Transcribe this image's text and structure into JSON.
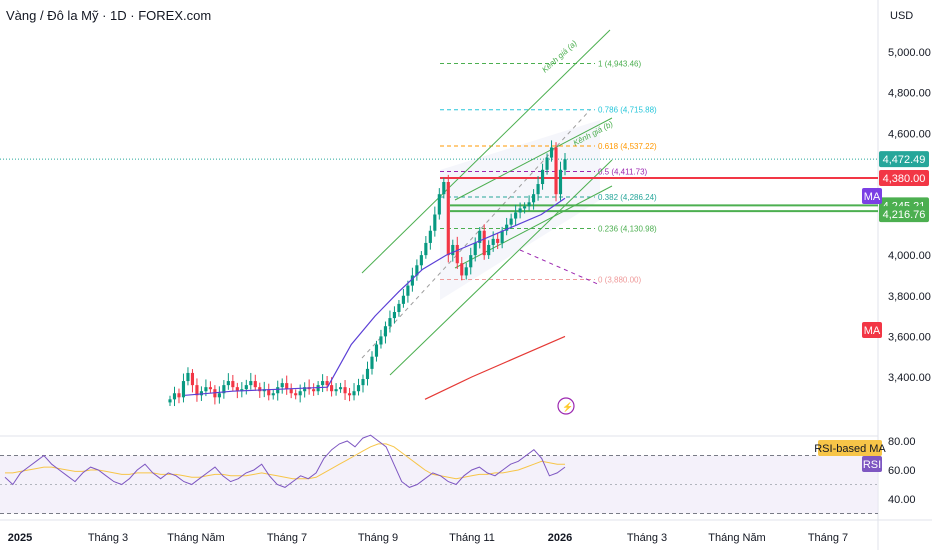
{
  "header": {
    "title": "Vàng / Đô la Mỹ · 1D · FOREX.com",
    "currency": "USD"
  },
  "price_axis": {
    "ticks": [
      {
        "value": 5000,
        "label": "5,000.00"
      },
      {
        "value": 4800,
        "label": "4,800.00"
      },
      {
        "value": 4600,
        "label": "4,600.00"
      },
      {
        "value": 4000,
        "label": "4,000.00"
      },
      {
        "value": 3800,
        "label": "3,800.00"
      },
      {
        "value": 3600,
        "label": "3,600.00"
      },
      {
        "value": 3400,
        "label": "3,400.00"
      }
    ]
  },
  "price_labels": {
    "last": {
      "value": 4472.49,
      "label": "4,472.49",
      "color": "#26a69a"
    },
    "resistance": {
      "value": 4380.0,
      "label": "4,380.00",
      "color": "#f23645"
    },
    "support_1": {
      "value": 4245.21,
      "label": "4,245.21",
      "color": "#4caf50"
    },
    "support_2": {
      "value": 4216.76,
      "label": "4,216.76",
      "color": "#4caf50"
    }
  },
  "ma_badges": [
    {
      "label": "MA",
      "color": "#7b3fe4"
    },
    {
      "label": "MA",
      "color": "#f23645"
    }
  ],
  "rsi_axis": {
    "ticks": [
      {
        "value": 80,
        "label": "80.00"
      },
      {
        "value": 60,
        "label": "60.00"
      },
      {
        "value": 40,
        "label": "40.00"
      }
    ],
    "rsi_ma_label": "RSI-based MA",
    "rsi_label": "RSI"
  },
  "time_axis": {
    "labels": [
      "2025",
      "Tháng 3",
      "Tháng Năm",
      "Tháng 7",
      "Tháng 9",
      "Tháng 11",
      "2026",
      "Tháng 3",
      "Tháng Năm",
      "Tháng 7"
    ],
    "bold": [
      true,
      false,
      false,
      false,
      false,
      false,
      true,
      false,
      false,
      false
    ]
  },
  "fibonacci": {
    "levels": [
      {
        "ratio": 1,
        "price": 4943.46,
        "label": "1 (4,943.46)",
        "color": "#4caf50"
      },
      {
        "ratio": 0.786,
        "price": 4715.88,
        "label": "0.786 (4,715.88)",
        "color": "#26c6da"
      },
      {
        "ratio": 0.618,
        "price": 4537.22,
        "label": "0.618 (4,537.22)",
        "color": "#ff9800"
      },
      {
        "ratio": 0.5,
        "price": 4411.73,
        "label": "0.5 (4,411.73)",
        "color": "#9c27b0"
      },
      {
        "ratio": 0.382,
        "price": 4286.24,
        "label": "0.382 (4,286.24)",
        "color": "#26a69a"
      },
      {
        "ratio": 0.236,
        "price": 4130.98,
        "label": "0.236 (4,130.98)",
        "color": "#4caf50"
      },
      {
        "ratio": 0,
        "price": 3880.0,
        "label": "0 (3,880.00)",
        "color": "#ef9a9a"
      }
    ]
  },
  "channel_labels": [
    "Kênh giá (a)",
    "Kênh giá (b)"
  ],
  "chart_data": {
    "type": "line",
    "title": "Vàng / Đô la Mỹ · 1D · FOREX.com",
    "xlabel": "",
    "ylabel": "USD",
    "ylim": [
      3250,
      5050
    ],
    "x_ticks": [
      "2025",
      "Tháng 3",
      "Tháng Năm",
      "Tháng 7",
      "Tháng 9",
      "Tháng 11",
      "2026",
      "Tháng 3",
      "Tháng Năm",
      "Tháng 7"
    ],
    "series": [
      {
        "values": [
          3290,
          3320,
          3300,
          3380,
          3420,
          3360,
          3310,
          3330,
          3350,
          3340,
          3300,
          3320,
          3360,
          3380,
          3350,
          3330,
          3340,
          3360,
          3380,
          3350,
          3330,
          3340,
          3310,
          3320,
          3350,
          3370,
          3340,
          3320,
          3310,
          3330,
          3350,
          3340,
          3330,
          3360,
          3380,
          3360,
          3330,
          3340,
          3350,
          3320,
          3310,
          3330,
          3360,
          3390,
          3440,
          3500,
          3560,
          3600,
          3650,
          3690,
          3720,
          3760,
          3800,
          3850,
          3900,
          3950,
          4000,
          4060,
          4120,
          4200,
          4300,
          4360,
          4000,
          4050,
          3960,
          3900,
          3940,
          4000,
          4060,
          4120,
          4000,
          4050,
          4080,
          4060,
          4120,
          4150,
          4180,
          4210,
          4230,
          4240,
          4260,
          4300,
          4350,
          4420,
          4480,
          4530,
          4300,
          4420,
          4472
        ]
      },
      {
        "name": "MA",
        "values": [
          3310,
          3320,
          3330,
          3335,
          3340,
          3345,
          3350,
          3560,
          3700,
          3820,
          3930,
          4000,
          4050,
          4100,
          4150,
          4200,
          4280
        ]
      },
      {
        "name": "MA",
        "values": [
          3290,
          3400,
          3500,
          3600
        ]
      }
    ]
  },
  "rsi_data": {
    "values": [
      55,
      50,
      58,
      62,
      66,
      70,
      64,
      60,
      56,
      52,
      58,
      62,
      60,
      56,
      52,
      50,
      54,
      60,
      64,
      58,
      54,
      58,
      56,
      52,
      50,
      54,
      58,
      62,
      56,
      52,
      54,
      58,
      60,
      64,
      56,
      50,
      48,
      52,
      56,
      54,
      58,
      68,
      74,
      78,
      80,
      76,
      82,
      84,
      80,
      76,
      64,
      52,
      48,
      50,
      54,
      58,
      56,
      52,
      50,
      56,
      60,
      62,
      58,
      56,
      60,
      64,
      66,
      70,
      74,
      68,
      56,
      58,
      62
    ],
    "ma_values": [
      58,
      58,
      59,
      60,
      61,
      62,
      62,
      61,
      60,
      59,
      59,
      60,
      60,
      59,
      58,
      57,
      57,
      58,
      58,
      58,
      57,
      57,
      57,
      56,
      55,
      55,
      56,
      57,
      57,
      56,
      56,
      56,
      57,
      58,
      57,
      56,
      55,
      54,
      54,
      54,
      55,
      58,
      61,
      64,
      67,
      70,
      73,
      76,
      78,
      78,
      76,
      72,
      68,
      64,
      60,
      57,
      56,
      55,
      54,
      55,
      56,
      57,
      57,
      58,
      58,
      59,
      60,
      62,
      64,
      66,
      65,
      64,
      64
    ]
  }
}
